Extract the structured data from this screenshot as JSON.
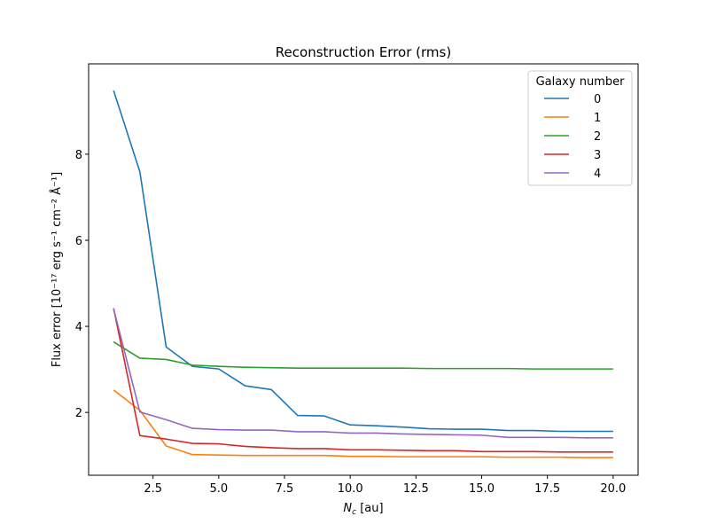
{
  "chart_data": {
    "type": "line",
    "title": "Reconstruction Error (rms)",
    "xlabel_var": "N",
    "xlabel_sub": "c",
    "xlabel_unit": " [au]",
    "ylabel": "Flux error [10⁻¹⁷ erg s⁻¹ cm⁻² Å⁻¹]",
    "xlim": [
      0.05,
      20.95
    ],
    "ylim": [
      0.54,
      10.1
    ],
    "xticks": [
      2.5,
      5.0,
      7.5,
      10.0,
      12.5,
      15.0,
      17.5,
      20.0
    ],
    "xtick_labels": [
      "2.5",
      "5.0",
      "7.5",
      "10.0",
      "12.5",
      "15.0",
      "17.5",
      "20.0"
    ],
    "yticks": [
      2,
      4,
      6,
      8
    ],
    "ytick_labels": [
      "2",
      "4",
      "6",
      "8"
    ],
    "grid": false,
    "legend_title": "Galaxy number",
    "legend_position": "top-right",
    "x": [
      1,
      2,
      3,
      4,
      5,
      6,
      7,
      8,
      9,
      10,
      11,
      12,
      13,
      14,
      15,
      16,
      17,
      18,
      19,
      20
    ],
    "series": [
      {
        "name": "0",
        "color": "#1f77b4",
        "values": [
          9.48,
          7.59,
          3.52,
          3.07,
          3.01,
          2.62,
          2.53,
          1.93,
          1.92,
          1.71,
          1.69,
          1.66,
          1.62,
          1.61,
          1.61,
          1.58,
          1.58,
          1.56,
          1.56,
          1.56
        ]
      },
      {
        "name": "1",
        "color": "#ff7f0e",
        "values": [
          2.52,
          2.05,
          1.22,
          1.02,
          1.01,
          1.0,
          1.0,
          1.0,
          1.0,
          0.98,
          0.98,
          0.97,
          0.97,
          0.97,
          0.97,
          0.96,
          0.96,
          0.96,
          0.95,
          0.95
        ]
      },
      {
        "name": "2",
        "color": "#2ca02c",
        "values": [
          3.64,
          3.26,
          3.23,
          3.1,
          3.07,
          3.05,
          3.04,
          3.03,
          3.03,
          3.03,
          3.03,
          3.03,
          3.02,
          3.02,
          3.02,
          3.02,
          3.01,
          3.01,
          3.01,
          3.01
        ]
      },
      {
        "name": "3",
        "color": "#d62728",
        "values": [
          4.42,
          1.46,
          1.38,
          1.28,
          1.27,
          1.21,
          1.18,
          1.16,
          1.16,
          1.13,
          1.13,
          1.12,
          1.11,
          1.11,
          1.09,
          1.09,
          1.09,
          1.08,
          1.08,
          1.08
        ]
      },
      {
        "name": "4",
        "color": "#9467bd",
        "values": [
          4.41,
          2.01,
          1.83,
          1.63,
          1.6,
          1.59,
          1.59,
          1.55,
          1.55,
          1.52,
          1.52,
          1.5,
          1.49,
          1.48,
          1.47,
          1.42,
          1.42,
          1.42,
          1.41,
          1.41
        ]
      }
    ]
  }
}
